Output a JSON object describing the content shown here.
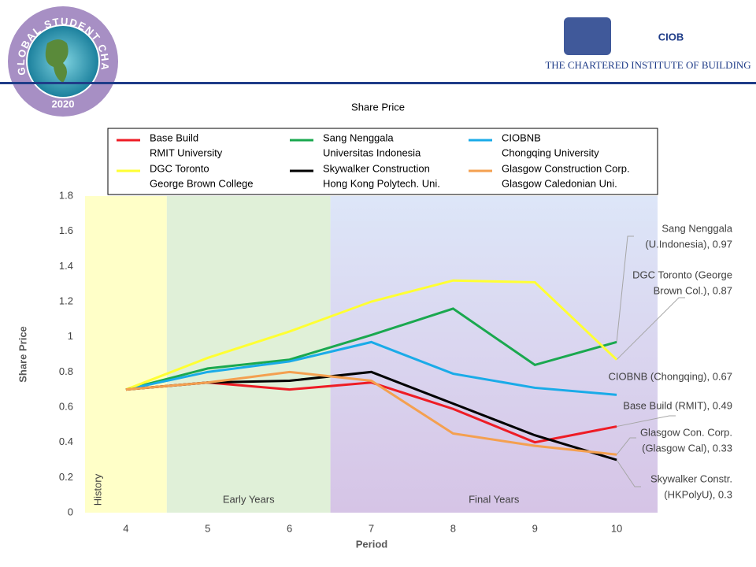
{
  "header": {
    "badge_text": "GLOBAL STUDENT CHALLENGE",
    "badge_year": "2020",
    "logo": "CIOB",
    "logo_subtitle": "THE CHARTERED INSTITUTE OF BUILDING"
  },
  "chart_data": {
    "type": "line",
    "title": "Share Price",
    "x_label": "Period",
    "y_label": "Share Price",
    "x": [
      4,
      5,
      6,
      7,
      8,
      9,
      10
    ],
    "xlim": [
      3.5,
      10.5
    ],
    "xticks": [
      4,
      5,
      6,
      7,
      8,
      9,
      10
    ],
    "ylim": [
      0,
      1.8
    ],
    "yticks": [
      0,
      0.2,
      0.4,
      0.6,
      0.8,
      1,
      1.2,
      1.4,
      1.6,
      1.8
    ],
    "grid": false,
    "regions": [
      {
        "label": "History",
        "from": 3.5,
        "to": 4.5,
        "color": "#ffffc8"
      },
      {
        "label": "Early Years",
        "from": 4.5,
        "to": 6.5,
        "color": "#e0f0d8"
      },
      {
        "label": "Final Years",
        "from": 6.5,
        "to": 10.5,
        "color": "#d8c8e8"
      }
    ],
    "series": [
      {
        "name": "Base Build",
        "university": "RMIT University",
        "color": "#ee1c25",
        "values": [
          0.7,
          0.74,
          0.7,
          0.74,
          0.59,
          0.4,
          0.49
        ]
      },
      {
        "name": "Sang Nenggala",
        "university": "Universitas Indonesia",
        "color": "#1aa84f",
        "values": [
          0.7,
          0.82,
          0.87,
          1.01,
          1.16,
          0.84,
          0.97
        ]
      },
      {
        "name": "CIOBNB",
        "university": "Chongqing University",
        "color": "#1aabe8",
        "values": [
          0.7,
          0.8,
          0.86,
          0.97,
          0.79,
          0.71,
          0.67
        ]
      },
      {
        "name": "DGC Toronto",
        "university": "George Brown College",
        "color": "#ffff33",
        "values": [
          0.7,
          0.88,
          1.03,
          1.2,
          1.32,
          1.31,
          0.87
        ]
      },
      {
        "name": "Skywalker  Construction",
        "university": "Hong Kong Polytech. Uni.",
        "color": "#000000",
        "values": [
          0.7,
          0.74,
          0.75,
          0.8,
          0.62,
          0.44,
          0.3
        ]
      },
      {
        "name": "Glasgow Construction Corp.",
        "university": "Glasgow Caledonian Uni.",
        "color": "#f4a050",
        "values": [
          0.7,
          0.74,
          0.8,
          0.75,
          0.45,
          0.38,
          0.33
        ]
      }
    ],
    "annotations": [
      {
        "lines": [
          "Sang Nenggala",
          "(U.Indonesia), 0.97"
        ]
      },
      {
        "lines": [
          "DGC Toronto  (George",
          "Brown Col.), 0.87"
        ]
      },
      {
        "lines": [
          "CIOBNB (Chongqing), 0.67"
        ]
      },
      {
        "lines": [
          "Base Build (RMIT), 0.49"
        ]
      },
      {
        "lines": [
          "Glasgow Con. Corp.",
          "(Glasgow Cal), 0.33"
        ]
      },
      {
        "lines": [
          "Skywalker Constr.",
          "(HKPolyU), 0.3"
        ]
      }
    ]
  }
}
